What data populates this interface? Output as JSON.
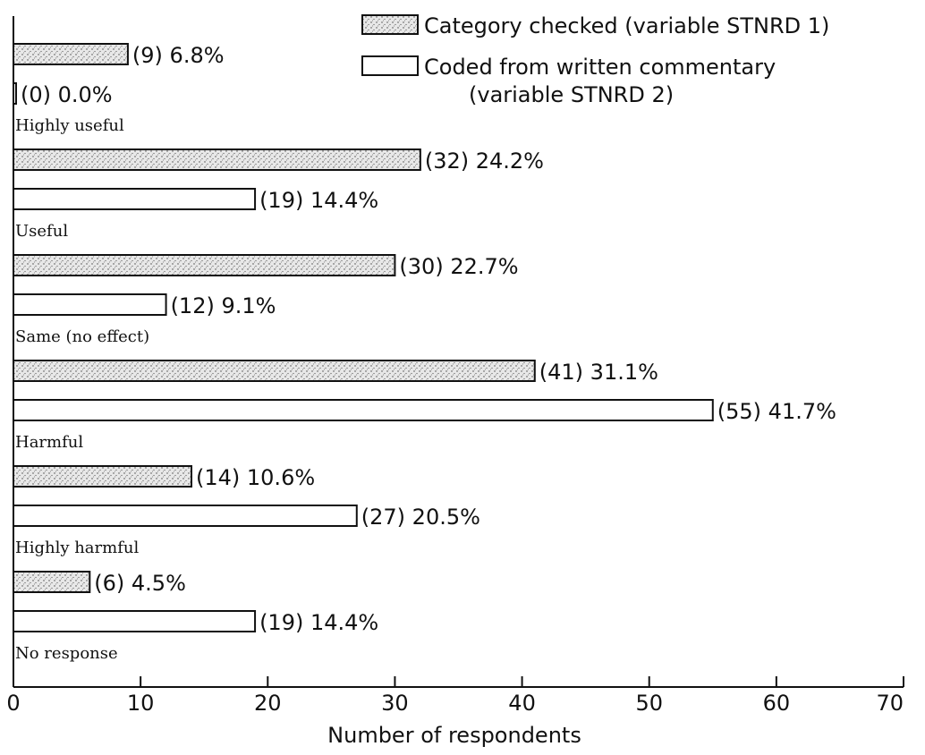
{
  "chart_data": {
    "type": "bar",
    "orientation": "horizontal",
    "categories": [
      "Highly useful",
      "Useful",
      "Same (no effect)",
      "Harmful",
      "Highly harmful",
      "No response"
    ],
    "series": [
      {
        "name": "Category checked (variable STNRD 1)",
        "fill": "stippled",
        "values": [
          9,
          32,
          30,
          41,
          14,
          6
        ],
        "labels": [
          "(9) 6.8%",
          "(32) 24.2%",
          "(30) 22.7%",
          "(41) 31.1%",
          "(14) 10.6%",
          "(6) 4.5%"
        ]
      },
      {
        "name": "Coded from written commentary",
        "name_line2": "(variable STNRD 2)",
        "fill": "hollow",
        "values": [
          0,
          19,
          12,
          55,
          27,
          19
        ],
        "labels": [
          "(0) 0.0%",
          "(19) 14.4%",
          "(12) 9.1%",
          "(55) 41.7%",
          "(27) 20.5%",
          "(19) 14.4%"
        ]
      }
    ],
    "xlabel": "Number of respondents",
    "xlim": [
      0,
      70
    ],
    "xticks": [
      "0",
      "10",
      "20",
      "30",
      "40",
      "50",
      "60",
      "70"
    ],
    "legend_position": "top-right",
    "grid": false,
    "colors": {
      "ink": "#111111",
      "stipple_bg": "#e8e8e8"
    }
  }
}
